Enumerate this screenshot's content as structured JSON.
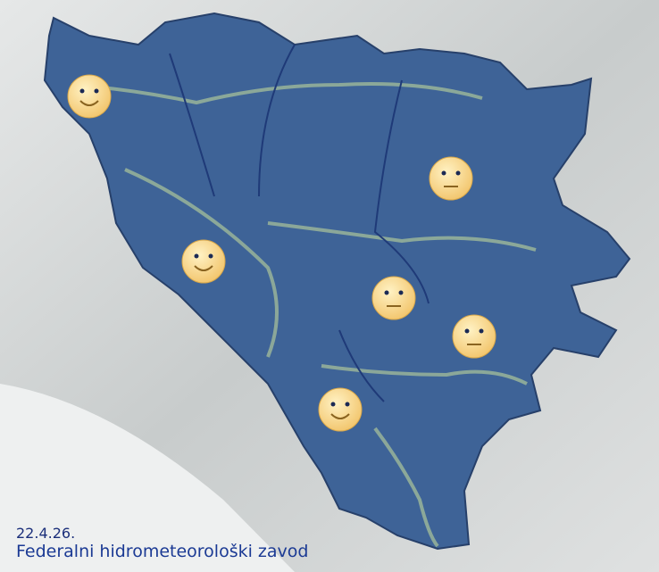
{
  "footer": {
    "date": "22.4.26.",
    "source": "Federalni hidrometeorološki zavod"
  }
}
